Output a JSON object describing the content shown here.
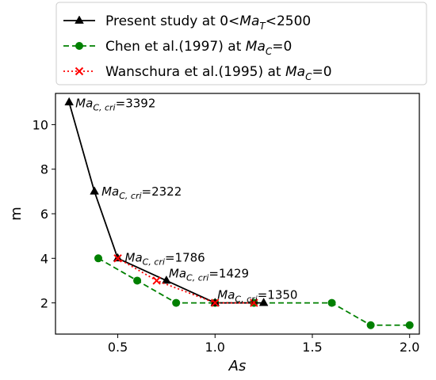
{
  "chart_data": {
    "type": "line",
    "xlabel": "As",
    "ylabel": "m",
    "xlim": [
      0.18,
      2.05
    ],
    "ylim": [
      0.6,
      11.4
    ],
    "xticks": [
      0.5,
      1.0,
      1.5,
      2.0
    ],
    "xtick_labels": [
      "0.5",
      "1.0",
      "1.5",
      "2.0"
    ],
    "yticks": [
      2,
      4,
      6,
      8,
      10
    ],
    "ytick_labels": [
      "2",
      "4",
      "6",
      "8",
      "10"
    ],
    "grid": false,
    "legend_position": "top, outside plot area",
    "series": [
      {
        "name": "Present study at 0<Ma_T<2500",
        "legend_parts": [
          {
            "t": "Present study at 0<"
          },
          {
            "t": "Ma",
            "i": true
          },
          {
            "t": "T",
            "i": true,
            "sub": true
          },
          {
            "t": "<2500"
          }
        ],
        "color": "#000000",
        "line_style": "solid",
        "marker": "triangle",
        "x": [
          0.25,
          0.38,
          0.5,
          0.75,
          1.0,
          1.25
        ],
        "y": [
          11,
          7,
          4,
          3,
          2,
          2
        ]
      },
      {
        "name": "Chen et al.(1997) at Ma_C=0",
        "legend_parts": [
          {
            "t": "Chen et al.(1997) at "
          },
          {
            "t": "Ma",
            "i": true
          },
          {
            "t": "C",
            "i": true,
            "sub": true
          },
          {
            "t": "=0"
          }
        ],
        "color": "#008000",
        "line_style": "dashed",
        "marker": "circle",
        "x": [
          0.4,
          0.6,
          0.8,
          1.0,
          1.2,
          1.6,
          1.8,
          2.0
        ],
        "y": [
          4,
          3,
          2,
          2,
          2,
          2,
          1,
          1
        ]
      },
      {
        "name": "Wanschura et al.(1995) at Ma_C=0",
        "legend_parts": [
          {
            "t": "Wanschura et al.(1995) at "
          },
          {
            "t": "Ma",
            "i": true
          },
          {
            "t": "C",
            "i": true,
            "sub": true
          },
          {
            "t": "=0"
          }
        ],
        "color": "#ff0000",
        "line_style": "dotted",
        "marker": "x",
        "x": [
          0.5,
          0.7,
          1.0,
          1.2
        ],
        "y": [
          4,
          3,
          2,
          2
        ]
      }
    ],
    "annotations": [
      {
        "x": 0.25,
        "y": 11,
        "value": "3392",
        "prefix": "Ma",
        "sub": "C, cri",
        "dx": 8,
        "dy": 6
      },
      {
        "x": 0.38,
        "y": 7,
        "value": "2322",
        "prefix": "Ma",
        "sub": "C, cri",
        "dx": 9,
        "dy": 5
      },
      {
        "x": 0.5,
        "y": 4,
        "value": "1786",
        "prefix": "Ma",
        "sub": "C, cri",
        "dx": 9,
        "dy": 4
      },
      {
        "x": 0.75,
        "y": 3,
        "value": "1429",
        "prefix": "Ma",
        "sub": "C, cri",
        "dx": 3,
        "dy": -4
      },
      {
        "x": 1.0,
        "y": 2,
        "value": "1350",
        "prefix": "Ma",
        "sub": "C, cri",
        "dx": 3,
        "dy": -5
      }
    ]
  }
}
